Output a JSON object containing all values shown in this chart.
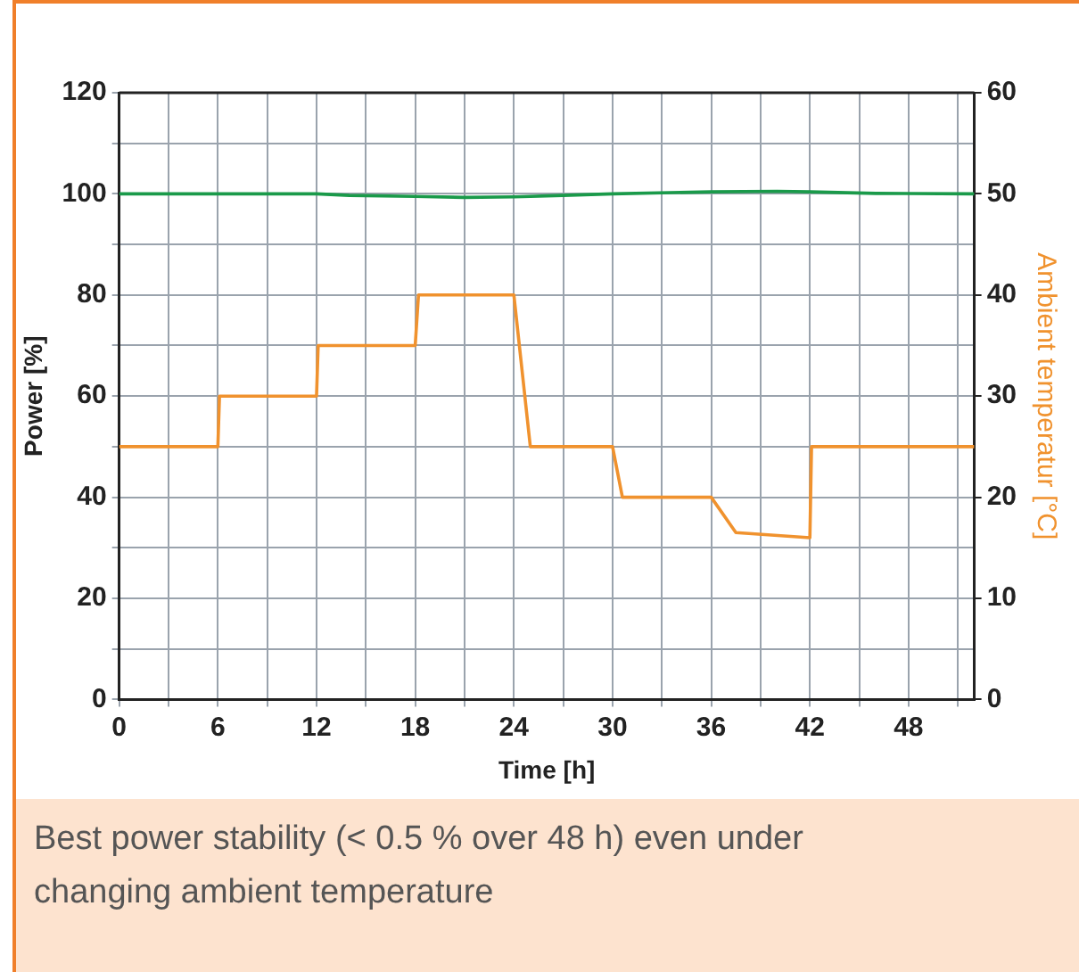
{
  "chart_data": {
    "type": "line",
    "xlabel": "Time [h]",
    "ylabel": "Power [%]",
    "y2label": "Ambient temperatur [°C]",
    "annotations": [
      "Best power stability (< 0.5 % over 48 h) even under changing ambient temperature"
    ],
    "series": [
      {
        "color": "#1a9a4a",
        "x": [
          0,
          6,
          12,
          14,
          18,
          21,
          24,
          27,
          30,
          36,
          40,
          42,
          46,
          52
        ],
        "values": [
          100,
          100,
          100,
          99.7,
          99.5,
          99.3,
          99.4,
          99.7,
          100,
          100.4,
          100.5,
          100.4,
          100.1,
          100
        ]
      },
      {
        "color": "#f0922e",
        "axis": "y2",
        "x": [
          0,
          6,
          6.1,
          12,
          12.1,
          18,
          18.2,
          24,
          25,
          30,
          30.6,
          36,
          37.5,
          42,
          42.1,
          52
        ],
        "values": [
          25,
          25,
          30,
          30,
          35,
          35,
          40,
          40,
          25,
          25,
          20,
          20,
          16.5,
          16,
          25,
          25
        ]
      }
    ],
    "xlim": [
      0,
      52
    ],
    "xticks": [
      0,
      {
        "value": 3,
        "label": null
      },
      6,
      {
        "value": 9,
        "label": null
      },
      12,
      {
        "value": 15,
        "label": null
      },
      18,
      {
        "value": 21,
        "label": null
      },
      24,
      {
        "value": 27,
        "label": null
      },
      30,
      {
        "value": 33,
        "label": null
      },
      36,
      {
        "value": 39,
        "label": null
      },
      42,
      {
        "value": 45,
        "label": null
      },
      48,
      {
        "value": 51,
        "label": null
      }
    ],
    "ylim": [
      0,
      120
    ],
    "yticks": [
      0,
      {
        "value": 10,
        "label": null
      },
      20,
      {
        "value": 30,
        "label": null
      },
      40,
      {
        "value": 50,
        "label": null
      },
      60,
      {
        "value": 70,
        "label": null
      },
      80,
      {
        "value": 90,
        "label": null
      },
      100,
      {
        "value": 110,
        "label": null
      },
      120
    ],
    "y2lim": [
      0,
      60
    ],
    "y2ticks": [
      0,
      10,
      20,
      30,
      40,
      50,
      60
    ],
    "grid": true,
    "legend": false,
    "marker": "none",
    "line_style": "solid"
  }
}
